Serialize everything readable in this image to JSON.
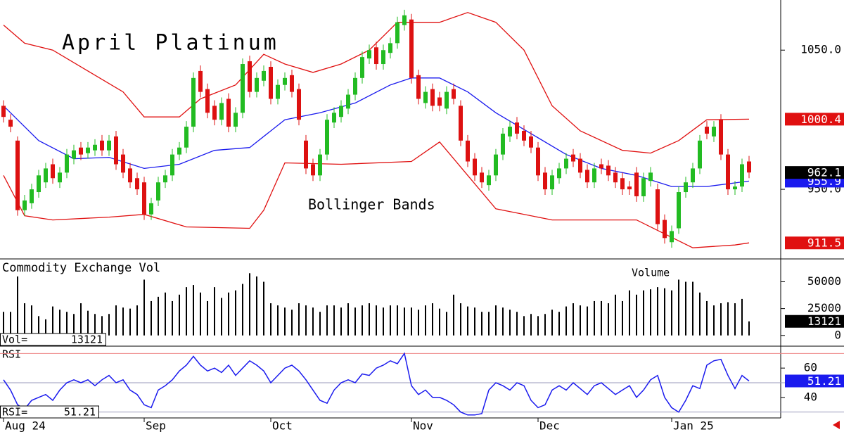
{
  "chart_data": {
    "type": "candlestick",
    "title": "April Platinum",
    "annotation": "Bollinger Bands",
    "up_color": "#22bb22",
    "down_color": "#dd1111",
    "x": [
      0,
      1,
      2,
      3,
      4,
      5,
      6,
      7,
      8,
      9,
      10,
      11,
      12,
      13,
      14,
      15,
      16,
      17,
      18,
      19,
      20,
      21,
      22,
      23,
      24,
      25,
      26,
      27,
      28,
      29,
      30,
      31,
      32,
      33,
      34,
      35,
      36,
      37,
      38,
      39,
      40,
      41,
      42,
      43,
      44,
      45,
      46,
      47,
      48,
      49,
      50,
      51,
      52,
      53,
      54,
      55,
      56,
      57,
      58,
      59,
      60,
      61,
      62,
      63,
      64,
      65,
      66,
      67,
      68,
      69,
      70,
      71,
      72,
      73,
      74,
      75,
      76,
      77,
      78,
      79,
      80,
      81,
      82,
      83,
      84,
      85,
      86,
      87,
      88,
      89,
      90,
      91,
      92,
      93,
      94,
      95,
      96,
      97,
      98,
      99,
      100,
      101,
      102,
      103,
      104,
      105,
      106
    ],
    "xlim": [
      -0.5,
      110.5
    ],
    "xticks": [
      {
        "value": 0,
        "label": "Aug 24"
      },
      {
        "value": 20,
        "label": "Sep"
      },
      {
        "value": 38,
        "label": "Oct"
      },
      {
        "value": 58,
        "label": "Nov"
      },
      {
        "value": 76,
        "label": "Dec"
      },
      {
        "value": 95,
        "label": "Jan 25"
      }
    ],
    "open": [
      1010,
      1000,
      985,
      935,
      940,
      948,
      955,
      968,
      955,
      962,
      972,
      980,
      976,
      978,
      985,
      978,
      988,
      975,
      965,
      958,
      955,
      932,
      942,
      955,
      960,
      975,
      980,
      995,
      1035,
      1022,
      1010,
      1000,
      1015,
      995,
      1005,
      1042,
      1020,
      1028,
      1038,
      1015,
      1025,
      1032,
      1022,
      985,
      968,
      960,
      975,
      998,
      1002,
      1008,
      1018,
      1030,
      1044,
      1052,
      1040,
      1048,
      1055,
      1068,
      1072,
      1032,
      1012,
      1022,
      1016,
      1008,
      1022,
      1010,
      985,
      972,
      962,
      953,
      960,
      975,
      988,
      998,
      992,
      988,
      980,
      962,
      950,
      958,
      965,
      975,
      972,
      964,
      955,
      968,
      967,
      962,
      958,
      952,
      962,
      945,
      956,
      950,
      928,
      912,
      922,
      948,
      955,
      965,
      995,
      988,
      1000,
      975,
      950,
      952,
      970
    ],
    "high": [
      1014,
      1004,
      988,
      946,
      954,
      964,
      969,
      972,
      966,
      979,
      982,
      984,
      984,
      986,
      989,
      989,
      992,
      979,
      969,
      962,
      959,
      944,
      959,
      964,
      979,
      984,
      999,
      1034,
      1039,
      1026,
      1014,
      1016,
      1019,
      1009,
      1044,
      1046,
      1034,
      1039,
      1042,
      1029,
      1034,
      1036,
      1026,
      989,
      972,
      979,
      1004,
      1009,
      1014,
      1022,
      1034,
      1049,
      1054,
      1056,
      1054,
      1059,
      1074,
      1079,
      1076,
      1036,
      1024,
      1026,
      1020,
      1024,
      1026,
      1014,
      989,
      976,
      966,
      964,
      979,
      994,
      999,
      1002,
      996,
      992,
      984,
      966,
      964,
      969,
      976,
      979,
      976,
      968,
      969,
      972,
      971,
      966,
      962,
      956,
      966,
      962,
      966,
      954,
      932,
      924,
      952,
      959,
      969,
      989,
      999,
      999,
      1004,
      979,
      956,
      972,
      974
    ],
    "low": [
      998,
      991,
      931,
      931,
      936,
      944,
      951,
      954,
      951,
      958,
      968,
      971,
      972,
      974,
      974,
      974,
      964,
      958,
      951,
      946,
      928,
      928,
      938,
      951,
      956,
      971,
      976,
      991,
      1016,
      1001,
      996,
      996,
      991,
      991,
      1001,
      1016,
      1016,
      1024,
      1011,
      1011,
      1021,
      1016,
      996,
      961,
      956,
      956,
      971,
      994,
      998,
      1004,
      1014,
      1026,
      1040,
      1036,
      1036,
      1044,
      1051,
      1064,
      1026,
      1011,
      1008,
      1006,
      1006,
      1004,
      1011,
      981,
      966,
      956,
      951,
      949,
      956,
      971,
      984,
      986,
      981,
      976,
      956,
      946,
      946,
      954,
      961,
      966,
      958,
      951,
      951,
      961,
      956,
      951,
      946,
      946,
      941,
      941,
      952,
      921,
      911,
      908,
      918,
      944,
      951,
      961,
      986,
      984,
      971,
      946,
      946,
      948,
      958
    ],
    "close": [
      1002,
      995,
      935,
      942,
      950,
      960,
      965,
      958,
      962,
      975,
      978,
      975,
      980,
      982,
      978,
      985,
      968,
      962,
      955,
      950,
      932,
      940,
      955,
      960,
      975,
      980,
      995,
      1030,
      1020,
      1005,
      1000,
      1012,
      995,
      1005,
      1040,
      1020,
      1030,
      1035,
      1015,
      1025,
      1030,
      1020,
      1000,
      965,
      960,
      975,
      1000,
      1005,
      1010,
      1018,
      1030,
      1045,
      1050,
      1040,
      1050,
      1055,
      1070,
      1075,
      1030,
      1015,
      1020,
      1010,
      1010,
      1020,
      1015,
      985,
      970,
      960,
      955,
      960,
      975,
      990,
      995,
      990,
      985,
      980,
      960,
      950,
      960,
      965,
      972,
      970,
      962,
      955,
      965,
      965,
      960,
      955,
      950,
      950,
      945,
      958,
      962,
      925,
      915,
      920,
      948,
      955,
      965,
      985,
      990,
      995,
      975,
      950,
      952,
      968,
      962.1
    ],
    "close_label_color": "#000000",
    "ylim": [
      900,
      1085
    ],
    "yticks": [
      {
        "value": 1050,
        "label": "1050.0"
      },
      {
        "value": 950,
        "label": "950.0"
      }
    ],
    "bands": [
      {
        "color": "#e01010",
        "x": [
          0,
          3,
          7,
          12,
          17,
          20,
          25,
          28,
          33,
          37,
          40,
          44,
          48,
          52,
          56,
          62,
          66,
          70,
          74,
          78,
          82,
          88,
          92,
          96,
          100,
          106
        ],
        "values": [
          1068,
          1055,
          1050,
          1035,
          1020,
          1002,
          1002,
          1015,
          1025,
          1047,
          1040,
          1034,
          1040,
          1050,
          1070,
          1070,
          1077,
          1070,
          1050,
          1010,
          992,
          978,
          976,
          985,
          1000,
          1000.4
        ]
      },
      {
        "color": "#1a1aee",
        "x": [
          0,
          5,
          10,
          15,
          20,
          25,
          30,
          35,
          40,
          45,
          50,
          55,
          58,
          62,
          66,
          70,
          75,
          80,
          85,
          90,
          95,
          100,
          106
        ],
        "values": [
          1010,
          985,
          972,
          973,
          965,
          968,
          978,
          980,
          1000,
          1005,
          1012,
          1025,
          1030,
          1030,
          1020,
          1005,
          990,
          975,
          965,
          960,
          952,
          952,
          955.9
        ]
      },
      {
        "color": "#e01010",
        "x": [
          0,
          3,
          7,
          15,
          20,
          26,
          35,
          37,
          40,
          48,
          58,
          62,
          66,
          70,
          78,
          90,
          94,
          98,
          104,
          106
        ],
        "values": [
          960,
          931,
          928,
          930,
          932,
          923,
          922,
          935,
          969,
          968,
          970,
          984,
          960,
          936,
          928,
          928,
          918,
          908,
          910,
          911.5
        ]
      }
    ],
    "volume": {
      "label": "Commodity Exchange Vol",
      "annotation": "Volume",
      "value_label": "Vol=",
      "color": "#000000",
      "values": [
        22000,
        22000,
        55000,
        30000,
        28000,
        18000,
        15000,
        27000,
        24000,
        22000,
        20000,
        30000,
        23000,
        20000,
        18000,
        20000,
        28000,
        26000,
        25000,
        28000,
        52000,
        32000,
        36000,
        40000,
        32000,
        38000,
        45000,
        47000,
        40000,
        32000,
        45000,
        35000,
        40000,
        42000,
        48000,
        58000,
        55000,
        50000,
        30000,
        28000,
        26000,
        24000,
        30000,
        28000,
        26000,
        22000,
        28000,
        28000,
        26000,
        30000,
        26000,
        28000,
        30000,
        28000,
        26000,
        28000,
        28000,
        26000,
        26000,
        24000,
        28000,
        30000,
        25000,
        22000,
        38000,
        30000,
        27000,
        26000,
        22000,
        22000,
        28000,
        26000,
        24000,
        22000,
        18000,
        20000,
        18000,
        20000,
        24000,
        22000,
        27000,
        30000,
        28000,
        27000,
        32000,
        32000,
        30000,
        38000,
        32000,
        42000,
        38000,
        42000,
        43000,
        45000,
        44000,
        42000,
        52000,
        50000,
        50000,
        40000,
        32000,
        28000,
        30000,
        31000,
        30000,
        34000,
        13121
      ],
      "ylim": [
        -10000,
        70000
      ],
      "yticks": [
        50000,
        25000,
        0
      ]
    },
    "rsi": {
      "label": "RSI",
      "value_label": "RSI=",
      "color": "#1a1aee",
      "values": [
        52,
        45,
        35,
        32,
        38,
        40,
        42,
        38,
        45,
        50,
        52,
        50,
        52,
        48,
        52,
        55,
        50,
        52,
        45,
        42,
        35,
        33,
        45,
        48,
        52,
        58,
        62,
        68,
        62,
        58,
        60,
        57,
        62,
        55,
        60,
        65,
        62,
        58,
        50,
        55,
        60,
        62,
        58,
        52,
        45,
        38,
        36,
        45,
        50,
        52,
        50,
        56,
        55,
        60,
        62,
        65,
        63,
        70,
        48,
        42,
        45,
        40,
        40,
        38,
        35,
        30,
        28,
        28,
        29,
        45,
        50,
        48,
        45,
        50,
        48,
        38,
        33,
        35,
        45,
        48,
        45,
        50,
        46,
        42,
        48,
        50,
        46,
        42,
        45,
        48,
        40,
        45,
        52,
        55,
        40,
        33,
        30,
        38,
        48,
        46,
        62,
        65,
        66,
        55,
        46,
        55,
        51.21
      ],
      "ylim": [
        26,
        74
      ],
      "yticks": [
        60,
        40
      ],
      "guides": [
        70,
        50,
        30
      ],
      "guide_colors": [
        "#ee8888",
        "#9999bb",
        "#9999bb"
      ]
    }
  }
}
